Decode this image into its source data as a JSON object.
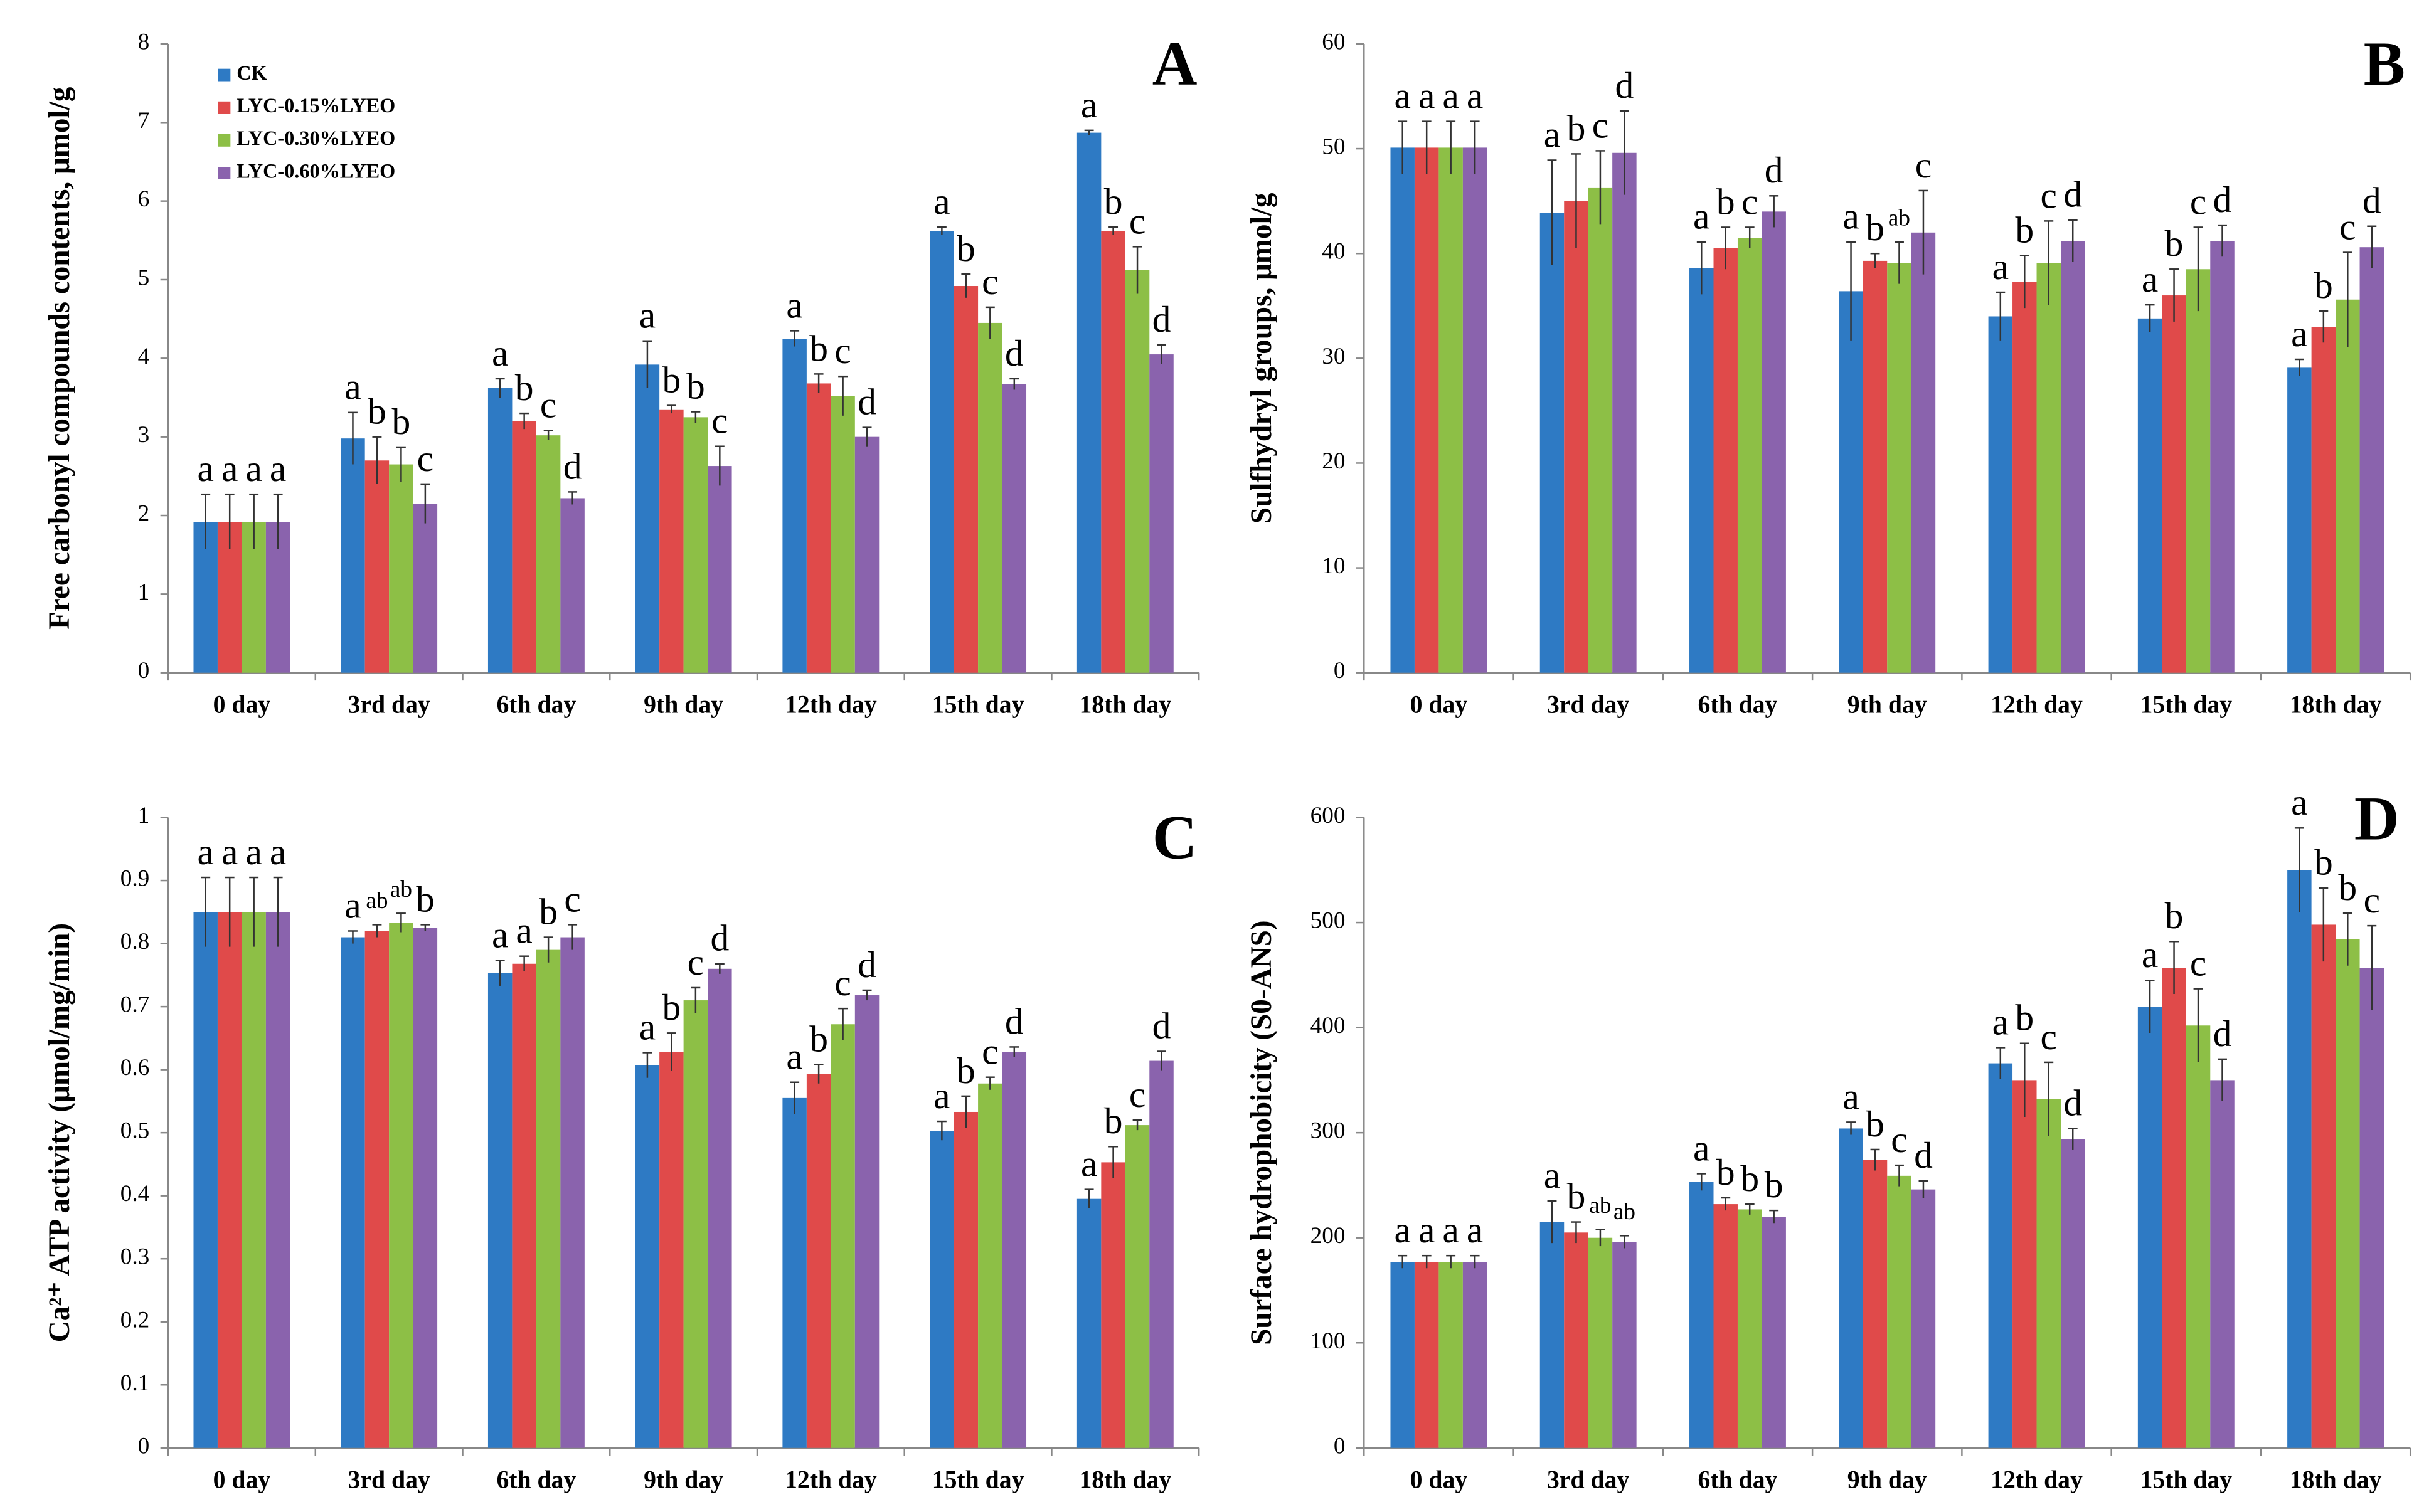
{
  "chart_data": [
    {
      "type": "bar",
      "panel": "A",
      "y_label": "Free carbonyl compounds contents, μmol/g",
      "categories": [
        "0 day",
        "3rd day",
        "6th day",
        "9th day",
        "12th day",
        "15th day",
        "18th day"
      ],
      "ylim": [
        0,
        8
      ],
      "yticks": [
        0,
        1,
        2,
        3,
        4,
        5,
        6,
        7,
        8
      ],
      "legend": "upper left",
      "series": [
        {
          "name": "CK",
          "color": "#2e7ac4",
          "values": [
            1.92,
            2.98,
            3.62,
            3.92,
            4.25,
            5.62,
            6.87
          ],
          "errors": [
            0.35,
            0.33,
            0.12,
            0.3,
            0.1,
            0.05,
            0.03
          ],
          "letters": [
            "a",
            "a",
            "a",
            "a",
            "a",
            "a",
            "a"
          ]
        },
        {
          "name": "LYC-0.15%LYEO",
          "color": "#e04a4a",
          "values": [
            1.92,
            2.7,
            3.2,
            3.35,
            3.68,
            4.92,
            5.62
          ],
          "errors": [
            0.35,
            0.3,
            0.1,
            0.05,
            0.12,
            0.15,
            0.05
          ],
          "letters": [
            "a",
            "b",
            "b",
            "b",
            "b",
            "b",
            "b"
          ]
        },
        {
          "name": "LYC-0.30%LYEO",
          "color": "#8dbf46",
          "values": [
            1.92,
            2.65,
            3.02,
            3.25,
            3.52,
            4.45,
            5.12
          ],
          "errors": [
            0.35,
            0.22,
            0.06,
            0.07,
            0.25,
            0.2,
            0.3
          ],
          "letters": [
            "a",
            "b",
            "c",
            "b",
            "c",
            "c",
            "c"
          ]
        },
        {
          "name": "LYC-0.60%LYEO",
          "color": "#8a63ad",
          "values": [
            1.92,
            2.15,
            2.22,
            2.63,
            3.0,
            3.67,
            4.05
          ],
          "errors": [
            0.35,
            0.25,
            0.08,
            0.25,
            0.12,
            0.07,
            0.12
          ],
          "letters": [
            "a",
            "c",
            "d",
            "c",
            "d",
            "d",
            "d"
          ]
        }
      ]
    },
    {
      "type": "bar",
      "panel": "B",
      "y_label": "Sulfhydryl groups, μmol/g",
      "categories": [
        "0 day",
        "3rd day",
        "6th day",
        "9th day",
        "12th day",
        "15th day",
        "18th day"
      ],
      "ylim": [
        0,
        60
      ],
      "yticks": [
        0,
        10,
        20,
        30,
        40,
        50,
        60
      ],
      "series": [
        {
          "color": "#2e7ac4",
          "values": [
            50.1,
            43.9,
            38.6,
            36.4,
            34.0,
            33.8,
            29.1
          ],
          "errors": [
            2.5,
            5,
            2.5,
            4.7,
            2.3,
            1.3,
            0.8
          ],
          "letters": [
            "a",
            "a",
            "a",
            "a",
            "a",
            "a",
            "a"
          ]
        },
        {
          "color": "#e04a4a",
          "values": [
            50.1,
            45.0,
            40.5,
            39.3,
            37.3,
            36.0,
            33.0
          ],
          "errors": [
            2.5,
            4.5,
            2,
            0.7,
            2.5,
            2.5,
            1.5
          ],
          "letters": [
            "a",
            "b",
            "b",
            "b",
            "b",
            "b",
            "b"
          ]
        },
        {
          "color": "#8dbf46",
          "values": [
            50.1,
            46.3,
            41.5,
            39.1,
            39.1,
            38.5,
            35.6
          ],
          "errors": [
            2.5,
            3.5,
            1,
            2,
            4,
            4,
            4.5
          ],
          "letters": [
            "a",
            "c",
            "c",
            "ab",
            "c",
            "c",
            "c"
          ]
        },
        {
          "color": "#8a63ad",
          "values": [
            50.1,
            49.6,
            44.0,
            42.0,
            41.2,
            41.2,
            40.6
          ],
          "errors": [
            2.5,
            4,
            1.5,
            4,
            2,
            1.5,
            2
          ],
          "letters": [
            "a",
            "d",
            "d",
            "c",
            "d",
            "d",
            "d"
          ]
        }
      ]
    },
    {
      "type": "bar",
      "panel": "C",
      "y_label": "Ca²⁺ ATP activity (μmol/mg/min)",
      "categories": [
        "0 day",
        "3rd day",
        "6th day",
        "9th day",
        "12th day",
        "15th day",
        "18th day"
      ],
      "ylim": [
        0,
        1
      ],
      "yticks": [
        0,
        0.1,
        0.2,
        0.3,
        0.4,
        0.5,
        0.6,
        0.7,
        0.8,
        0.9,
        1
      ],
      "series": [
        {
          "color": "#2e7ac4",
          "values": [
            0.85,
            0.81,
            0.753,
            0.607,
            0.555,
            0.503,
            0.395
          ],
          "errors": [
            0.055,
            0.01,
            0.02,
            0.02,
            0.025,
            0.015,
            0.015
          ],
          "letters": [
            "a",
            "a",
            "a",
            "a",
            "a",
            "a",
            "a"
          ]
        },
        {
          "color": "#e04a4a",
          "values": [
            0.85,
            0.82,
            0.768,
            0.628,
            0.593,
            0.533,
            0.453
          ],
          "errors": [
            0.055,
            0.01,
            0.012,
            0.03,
            0.015,
            0.025,
            0.025
          ],
          "letters": [
            "a",
            "ab",
            "a",
            "b",
            "b",
            "b",
            "b"
          ]
        },
        {
          "color": "#8dbf46",
          "values": [
            0.85,
            0.833,
            0.79,
            0.71,
            0.672,
            0.578,
            0.512
          ],
          "errors": [
            0.055,
            0.015,
            0.02,
            0.02,
            0.025,
            0.01,
            0.008
          ],
          "letters": [
            "a",
            "ab",
            "b",
            "c",
            "c",
            "c",
            "c"
          ]
        },
        {
          "color": "#8a63ad",
          "values": [
            0.85,
            0.825,
            0.81,
            0.76,
            0.718,
            0.628,
            0.614
          ],
          "errors": [
            0.055,
            0.005,
            0.02,
            0.008,
            0.008,
            0.008,
            0.015
          ],
          "letters": [
            "a",
            "b",
            "c",
            "d",
            "d",
            "d",
            "d"
          ]
        }
      ]
    },
    {
      "type": "bar",
      "panel": "D",
      "y_label": "Surface hydrophobicity (S0-ANS)",
      "categories": [
        "0 day",
        "3rd day",
        "6th day",
        "9th day",
        "12th day",
        "15th day",
        "18th day"
      ],
      "ylim": [
        0,
        600
      ],
      "yticks": [
        0,
        100,
        200,
        300,
        400,
        500,
        600
      ],
      "series": [
        {
          "color": "#2e7ac4",
          "values": [
            177,
            215,
            253,
            304,
            366,
            420,
            550
          ],
          "errors": [
            6,
            20,
            8,
            6,
            15,
            25,
            40
          ],
          "letters": [
            "a",
            "a",
            "a",
            "a",
            "a",
            "a",
            "a"
          ]
        },
        {
          "color": "#e04a4a",
          "values": [
            177,
            205,
            232,
            274,
            350,
            457,
            498
          ],
          "errors": [
            6,
            10,
            6,
            10,
            35,
            25,
            35
          ],
          "letters": [
            "a",
            "b",
            "b",
            "b",
            "b",
            "b",
            "b"
          ]
        },
        {
          "color": "#8dbf46",
          "values": [
            177,
            200,
            227,
            259,
            332,
            402,
            484
          ],
          "errors": [
            6,
            8,
            5,
            10,
            35,
            35,
            25
          ],
          "letters": [
            "a",
            "ab",
            "b",
            "c",
            "c",
            "c",
            "b"
          ]
        },
        {
          "color": "#8a63ad",
          "values": [
            177,
            196,
            220,
            246,
            294,
            350,
            457
          ],
          "errors": [
            6,
            6,
            6,
            8,
            10,
            20,
            40
          ],
          "letters": [
            "a",
            "ab",
            "b",
            "d",
            "d",
            "d",
            "c"
          ]
        }
      ]
    }
  ]
}
